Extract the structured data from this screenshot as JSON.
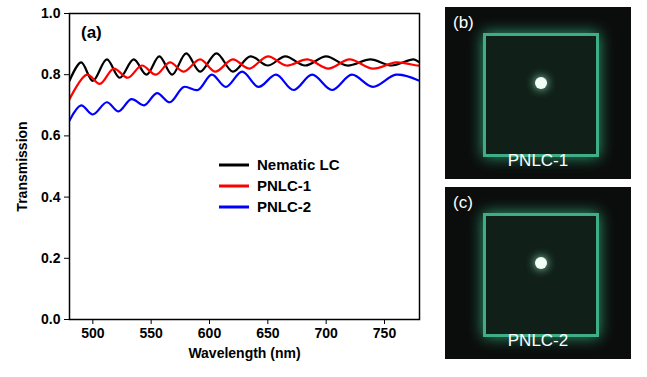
{
  "chart_data": {
    "type": "line",
    "annotations": [
      "(a)"
    ],
    "x_label": "Wavelength (nm)",
    "y_label": "Transmission",
    "xlim": [
      480,
      780
    ],
    "xticks": [
      500,
      550,
      600,
      650,
      700,
      750
    ],
    "ylim": [
      0,
      1.0
    ],
    "yticks": [
      {
        "value": 0,
        "label": "0.0"
      },
      {
        "value": 0.2,
        "label": "0.2"
      },
      {
        "value": 0.4,
        "label": "0.4"
      },
      {
        "value": 0.6,
        "label": "0.6"
      },
      {
        "value": 0.8,
        "label": "0.8"
      },
      {
        "value": 1.0,
        "label": "1.0"
      }
    ],
    "grid": false,
    "legend": "lower right",
    "series": [
      {
        "name": "Nematic LC",
        "color": "#000000",
        "x": [
          480,
          490,
          500,
          512,
          523,
          535,
          546,
          557,
          568,
          580,
          592,
          606,
          620,
          635,
          650,
          665,
          682,
          700,
          718,
          738,
          756,
          775,
          780
        ],
        "values": [
          0.78,
          0.84,
          0.78,
          0.85,
          0.79,
          0.85,
          0.8,
          0.86,
          0.8,
          0.87,
          0.81,
          0.87,
          0.81,
          0.86,
          0.83,
          0.86,
          0.83,
          0.86,
          0.83,
          0.85,
          0.83,
          0.85,
          0.84
        ]
      },
      {
        "name": "PNLC-1",
        "color": "#ff0000",
        "x": [
          480,
          495,
          506,
          518,
          530,
          542,
          554,
          566,
          578,
          592,
          605,
          620,
          634,
          650,
          666,
          684,
          702,
          720,
          740,
          760,
          778,
          780
        ],
        "values": [
          0.72,
          0.8,
          0.77,
          0.82,
          0.79,
          0.83,
          0.8,
          0.84,
          0.81,
          0.85,
          0.81,
          0.85,
          0.82,
          0.86,
          0.83,
          0.85,
          0.82,
          0.85,
          0.82,
          0.84,
          0.83,
          0.83
        ]
      },
      {
        "name": "PNLC-2",
        "color": "#0000ff",
        "x": [
          480,
          490,
          500,
          512,
          522,
          533,
          544,
          555,
          566,
          578,
          590,
          602,
          614,
          628,
          642,
          657,
          672,
          688,
          705,
          722,
          740,
          760,
          780
        ],
        "values": [
          0.65,
          0.7,
          0.67,
          0.71,
          0.68,
          0.72,
          0.7,
          0.74,
          0.71,
          0.76,
          0.75,
          0.8,
          0.76,
          0.81,
          0.76,
          0.8,
          0.75,
          0.8,
          0.75,
          0.8,
          0.76,
          0.8,
          0.78
        ]
      }
    ]
  },
  "photos": [
    {
      "panel": "(b)",
      "label": "PNLC-1"
    },
    {
      "panel": "(c)",
      "label": "PNLC-2"
    }
  ]
}
